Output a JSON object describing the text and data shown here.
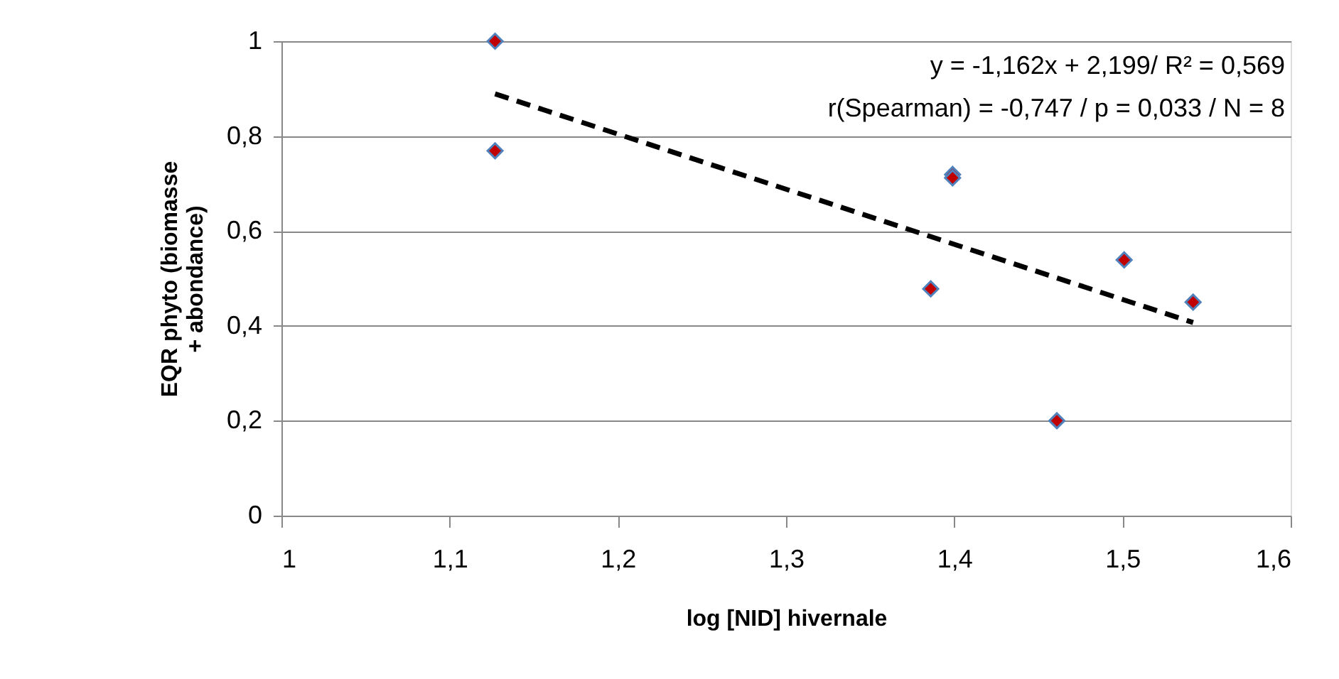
{
  "chart_data": {
    "type": "scatter",
    "xlabel": "log [NID] hivernale",
    "ylabel": "EQR phyto (biomasse + abondance)",
    "x": [
      1.127,
      1.127,
      1.386,
      1.399,
      1.399,
      1.461,
      1.501,
      1.542
    ],
    "series": [
      {
        "color": "#c00000",
        "values": [
          1.0,
          0.769,
          0.478,
          0.719,
          0.712,
          0.2,
          0.539,
          0.45
        ],
        "marker": "diamond"
      },
      {
        "type": "line",
        "color": "#000000",
        "x": [
          1.127,
          1.542
        ],
        "values": [
          0.889,
          0.407
        ],
        "line_style": "dashed",
        "marker": "none"
      }
    ],
    "annotations": [
      "y = -1,162x + 2,199/ R² = 0,569",
      "r(Spearman) = -0,747 / p = 0,033 / N = 8"
    ],
    "xlim": [
      1,
      1.6
    ],
    "ylim": [
      0,
      1
    ],
    "xticks": [
      1,
      {
        "value": 1.1,
        "label": "1,1"
      },
      {
        "value": 1.2,
        "label": "1,2"
      },
      {
        "value": 1.3,
        "label": "1,3"
      },
      {
        "value": 1.4,
        "label": "1,4"
      },
      {
        "value": 1.5,
        "label": "1,5"
      },
      {
        "value": 1.6,
        "label": "1,6"
      }
    ],
    "yticks": [
      0,
      {
        "value": 0.2,
        "label": "0,2"
      },
      {
        "value": 0.4,
        "label": "0,4"
      },
      {
        "value": 0.6,
        "label": "0,6"
      },
      {
        "value": 0.8,
        "label": "0,8"
      },
      1
    ],
    "grid": "y"
  }
}
